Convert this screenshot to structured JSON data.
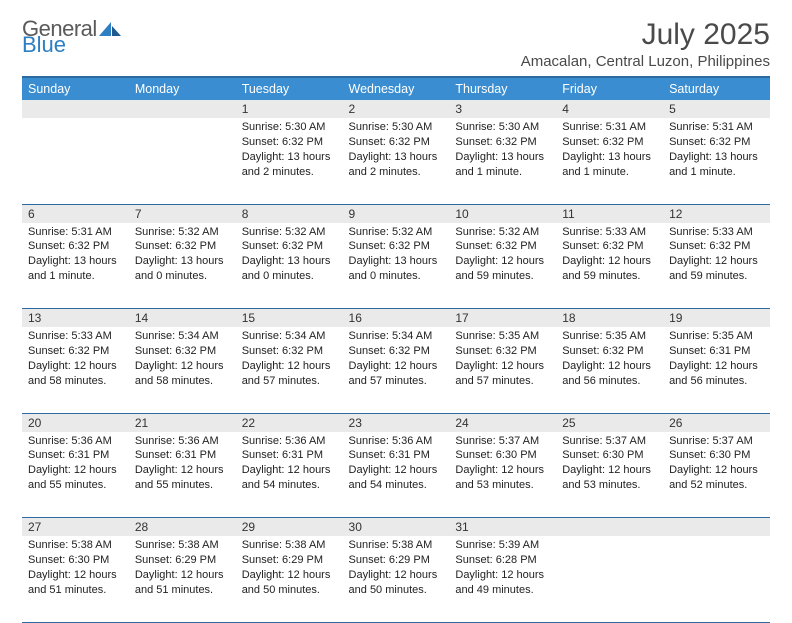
{
  "logo": {
    "word1": "General",
    "word2": "Blue"
  },
  "title": "July 2025",
  "location": "Amacalan, Central Luzon, Philippines",
  "colors": {
    "header_bg": "#3a8dd0",
    "header_border": "#2d6aa0",
    "daynum_bg": "#eaeaea",
    "logo_blue": "#2d7fc4",
    "text": "#222222"
  },
  "weekdays": [
    "Sunday",
    "Monday",
    "Tuesday",
    "Wednesday",
    "Thursday",
    "Friday",
    "Saturday"
  ],
  "weeks": [
    [
      null,
      null,
      {
        "n": "1",
        "sunrise": "5:30 AM",
        "sunset": "6:32 PM",
        "daylight": "13 hours and 2 minutes."
      },
      {
        "n": "2",
        "sunrise": "5:30 AM",
        "sunset": "6:32 PM",
        "daylight": "13 hours and 2 minutes."
      },
      {
        "n": "3",
        "sunrise": "5:30 AM",
        "sunset": "6:32 PM",
        "daylight": "13 hours and 1 minute."
      },
      {
        "n": "4",
        "sunrise": "5:31 AM",
        "sunset": "6:32 PM",
        "daylight": "13 hours and 1 minute."
      },
      {
        "n": "5",
        "sunrise": "5:31 AM",
        "sunset": "6:32 PM",
        "daylight": "13 hours and 1 minute."
      }
    ],
    [
      {
        "n": "6",
        "sunrise": "5:31 AM",
        "sunset": "6:32 PM",
        "daylight": "13 hours and 1 minute."
      },
      {
        "n": "7",
        "sunrise": "5:32 AM",
        "sunset": "6:32 PM",
        "daylight": "13 hours and 0 minutes."
      },
      {
        "n": "8",
        "sunrise": "5:32 AM",
        "sunset": "6:32 PM",
        "daylight": "13 hours and 0 minutes."
      },
      {
        "n": "9",
        "sunrise": "5:32 AM",
        "sunset": "6:32 PM",
        "daylight": "13 hours and 0 minutes."
      },
      {
        "n": "10",
        "sunrise": "5:32 AM",
        "sunset": "6:32 PM",
        "daylight": "12 hours and 59 minutes."
      },
      {
        "n": "11",
        "sunrise": "5:33 AM",
        "sunset": "6:32 PM",
        "daylight": "12 hours and 59 minutes."
      },
      {
        "n": "12",
        "sunrise": "5:33 AM",
        "sunset": "6:32 PM",
        "daylight": "12 hours and 59 minutes."
      }
    ],
    [
      {
        "n": "13",
        "sunrise": "5:33 AM",
        "sunset": "6:32 PM",
        "daylight": "12 hours and 58 minutes."
      },
      {
        "n": "14",
        "sunrise": "5:34 AM",
        "sunset": "6:32 PM",
        "daylight": "12 hours and 58 minutes."
      },
      {
        "n": "15",
        "sunrise": "5:34 AM",
        "sunset": "6:32 PM",
        "daylight": "12 hours and 57 minutes."
      },
      {
        "n": "16",
        "sunrise": "5:34 AM",
        "sunset": "6:32 PM",
        "daylight": "12 hours and 57 minutes."
      },
      {
        "n": "17",
        "sunrise": "5:35 AM",
        "sunset": "6:32 PM",
        "daylight": "12 hours and 57 minutes."
      },
      {
        "n": "18",
        "sunrise": "5:35 AM",
        "sunset": "6:32 PM",
        "daylight": "12 hours and 56 minutes."
      },
      {
        "n": "19",
        "sunrise": "5:35 AM",
        "sunset": "6:31 PM",
        "daylight": "12 hours and 56 minutes."
      }
    ],
    [
      {
        "n": "20",
        "sunrise": "5:36 AM",
        "sunset": "6:31 PM",
        "daylight": "12 hours and 55 minutes."
      },
      {
        "n": "21",
        "sunrise": "5:36 AM",
        "sunset": "6:31 PM",
        "daylight": "12 hours and 55 minutes."
      },
      {
        "n": "22",
        "sunrise": "5:36 AM",
        "sunset": "6:31 PM",
        "daylight": "12 hours and 54 minutes."
      },
      {
        "n": "23",
        "sunrise": "5:36 AM",
        "sunset": "6:31 PM",
        "daylight": "12 hours and 54 minutes."
      },
      {
        "n": "24",
        "sunrise": "5:37 AM",
        "sunset": "6:30 PM",
        "daylight": "12 hours and 53 minutes."
      },
      {
        "n": "25",
        "sunrise": "5:37 AM",
        "sunset": "6:30 PM",
        "daylight": "12 hours and 53 minutes."
      },
      {
        "n": "26",
        "sunrise": "5:37 AM",
        "sunset": "6:30 PM",
        "daylight": "12 hours and 52 minutes."
      }
    ],
    [
      {
        "n": "27",
        "sunrise": "5:38 AM",
        "sunset": "6:30 PM",
        "daylight": "12 hours and 51 minutes."
      },
      {
        "n": "28",
        "sunrise": "5:38 AM",
        "sunset": "6:29 PM",
        "daylight": "12 hours and 51 minutes."
      },
      {
        "n": "29",
        "sunrise": "5:38 AM",
        "sunset": "6:29 PM",
        "daylight": "12 hours and 50 minutes."
      },
      {
        "n": "30",
        "sunrise": "5:38 AM",
        "sunset": "6:29 PM",
        "daylight": "12 hours and 50 minutes."
      },
      {
        "n": "31",
        "sunrise": "5:39 AM",
        "sunset": "6:28 PM",
        "daylight": "12 hours and 49 minutes."
      },
      null,
      null
    ]
  ],
  "labels": {
    "sunrise_prefix": "Sunrise: ",
    "sunset_prefix": "Sunset: ",
    "daylight_prefix": "Daylight: "
  }
}
